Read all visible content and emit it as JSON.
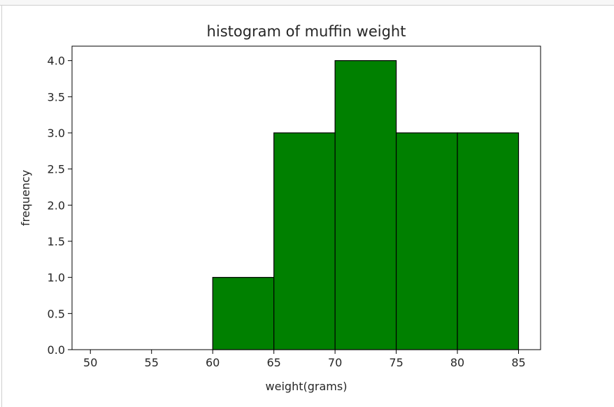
{
  "chart_data": {
    "type": "bar",
    "title": "histogram of muffin weight",
    "xlabel": "weight(grams)",
    "ylabel": "frequency",
    "bins": [
      {
        "from": 60,
        "to": 65,
        "value": 1
      },
      {
        "from": 65,
        "to": 70,
        "value": 3
      },
      {
        "from": 70,
        "to": 75,
        "value": 4
      },
      {
        "from": 75,
        "to": 80,
        "value": 3
      },
      {
        "from": 80,
        "to": 85,
        "value": 3
      }
    ],
    "xlim": [
      48.5,
      86.8
    ],
    "ylim": [
      0,
      4.2
    ],
    "xticks": [
      50,
      55,
      60,
      65,
      70,
      75,
      80,
      85
    ],
    "xtick_labels": [
      "50",
      "55",
      "60",
      "65",
      "70",
      "75",
      "80",
      "85"
    ],
    "yticks": [
      0,
      0.5,
      1,
      1.5,
      2,
      2.5,
      3,
      3.5,
      4
    ],
    "ytick_labels": [
      "0.0",
      "0.5",
      "1.0",
      "1.5",
      "2.0",
      "2.5",
      "3.0",
      "3.5",
      "4.0"
    ],
    "bar_color": "#008000",
    "edge_color": "#000000",
    "grid": false
  }
}
